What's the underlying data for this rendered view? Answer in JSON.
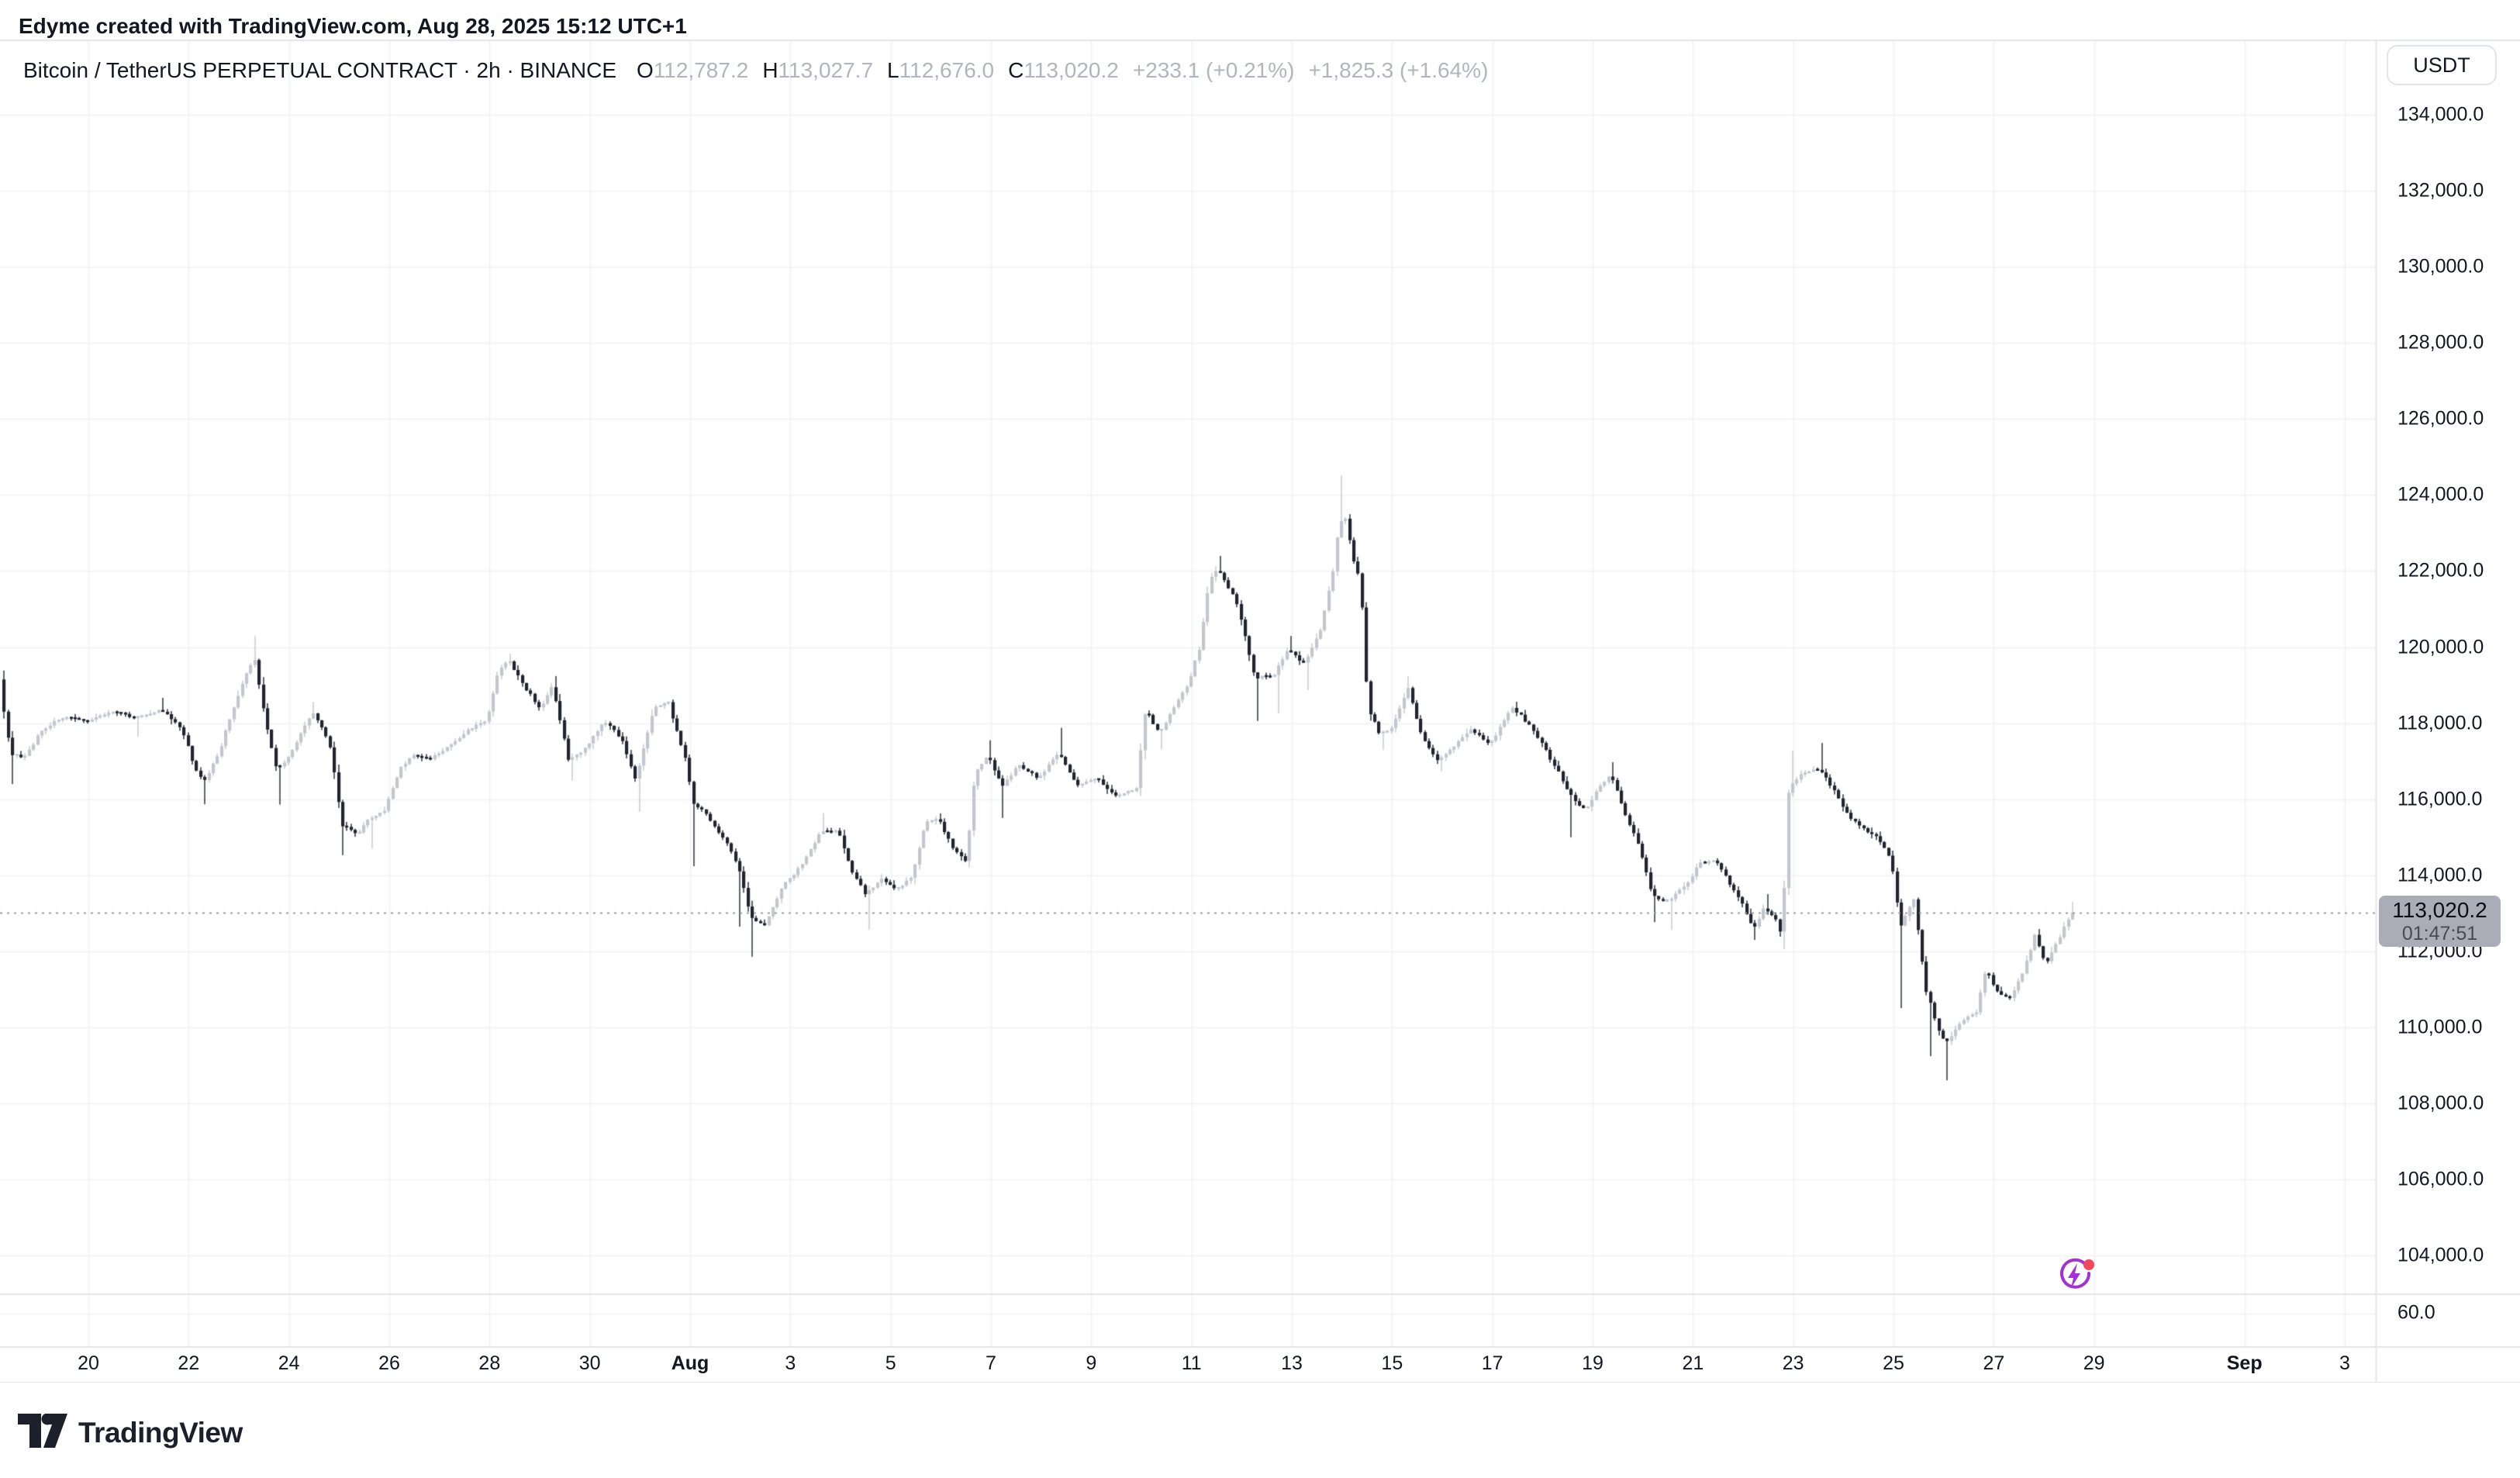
{
  "header": {
    "title": "Edyme created with TradingView.com, Aug 28, 2025 15:12 UTC+1"
  },
  "symbol": {
    "title": "Bitcoin / TetherUS PERPETUAL CONTRACT · 2h · BINANCE",
    "o_label": "O",
    "open": "112,787.2",
    "h_label": "H",
    "high": "113,027.7",
    "l_label": "L",
    "low": "112,676.0",
    "c_label": "C",
    "close": "113,020.2",
    "change": "+233.1 (+0.21%)",
    "change_extended": "+1,825.3 (+1.64%)"
  },
  "price_scale": {
    "currency": "USDT",
    "last_price": "113,020.2",
    "countdown": "01:47:51",
    "ticks": [
      {
        "label": "134,000.0",
        "value": 134000
      },
      {
        "label": "132,000.0",
        "value": 132000
      },
      {
        "label": "130,000.0",
        "value": 130000
      },
      {
        "label": "128,000.0",
        "value": 128000
      },
      {
        "label": "126,000.0",
        "value": 126000
      },
      {
        "label": "124,000.0",
        "value": 124000
      },
      {
        "label": "122,000.0",
        "value": 122000
      },
      {
        "label": "120,000.0",
        "value": 120000
      },
      {
        "label": "118,000.0",
        "value": 118000
      },
      {
        "label": "116,000.0",
        "value": 116000
      },
      {
        "label": "114,000.0",
        "value": 114000
      },
      {
        "label": "112,000.0",
        "value": 112000
      },
      {
        "label": "110,000.0",
        "value": 110000
      },
      {
        "label": "108,000.0",
        "value": 108000
      },
      {
        "label": "106,000.0",
        "value": 106000
      },
      {
        "label": "104,000.0",
        "value": 104000
      }
    ],
    "sub_pane_tick": {
      "label": "60.0"
    }
  },
  "time_scale": {
    "ticks": [
      {
        "label": "20",
        "d": 0
      },
      {
        "label": "22",
        "d": 2
      },
      {
        "label": "24",
        "d": 4
      },
      {
        "label": "26",
        "d": 6
      },
      {
        "label": "28",
        "d": 8
      },
      {
        "label": "30",
        "d": 10
      },
      {
        "label": "Aug",
        "d": 12,
        "bold": true
      },
      {
        "label": "3",
        "d": 14
      },
      {
        "label": "5",
        "d": 16
      },
      {
        "label": "7",
        "d": 18
      },
      {
        "label": "9",
        "d": 20
      },
      {
        "label": "11",
        "d": 22
      },
      {
        "label": "13",
        "d": 24
      },
      {
        "label": "15",
        "d": 26
      },
      {
        "label": "17",
        "d": 28
      },
      {
        "label": "19",
        "d": 30
      },
      {
        "label": "21",
        "d": 32
      },
      {
        "label": "23",
        "d": 34
      },
      {
        "label": "25",
        "d": 36
      },
      {
        "label": "27",
        "d": 38
      },
      {
        "label": "29",
        "d": 40
      },
      {
        "label": "Sep",
        "d": 43,
        "bold": true
      },
      {
        "label": "3",
        "d": 45
      }
    ]
  },
  "footer": {
    "logo_text": "TradingView"
  },
  "icons": {
    "boost": "lightning-bolt-in-purple-circle-with-red-dot",
    "logo_mark": "tradingview-tv-glyph"
  },
  "colors": {
    "up_candle": "#C3C6CE",
    "down_candle": "#20242F",
    "grid": "#F1F2F4",
    "separator": "#E3E5EA",
    "price_line": "#9B9EA6",
    "muted_text": "#B2B5BE",
    "text": "#131722",
    "label_bg": "#AAADB7",
    "boost_purple": "#A431D6",
    "boost_red": "#F6465D"
  },
  "chart_data": {
    "type": "candlestick",
    "title": "Bitcoin / TetherUS PERPETUAL CONTRACT",
    "interval": "2h",
    "exchange": "BINANCE",
    "quote_currency": "USDT",
    "current_bar": {
      "open": 112787.2,
      "high": 113027.7,
      "low": 112676.0,
      "close": 113020.2,
      "change_abs": 233.1,
      "change_pct": 0.21,
      "change_ext_abs": 1825.3,
      "change_ext_pct": 1.64
    },
    "last_close": 113020.2,
    "visible_date_range": [
      "Jul 18 2025",
      "Sep 4 2025"
    ],
    "data_date_range": [
      "Jul 18 2025 06:00",
      "Aug 28 2025 15:12"
    ],
    "ylim": [
      103000,
      136000
    ],
    "grid": true,
    "legend_position": "none",
    "sub_pane_value": 60.0,
    "anchors_format": "[days_since_Jul20_00utc, close_usdt, high_spike_or_null, low_spike_or_null]",
    "anchors": [
      [
        -1.72,
        119150,
        119320,
        null
      ],
      [
        -1.52,
        117250,
        null,
        116400
      ],
      [
        -1.25,
        117050,
        null,
        null
      ],
      [
        -0.9,
        117800,
        null,
        null
      ],
      [
        -0.5,
        118150,
        null,
        null
      ],
      [
        0.0,
        118050,
        null,
        null
      ],
      [
        0.5,
        118300,
        null,
        null
      ],
      [
        1.0,
        118150,
        null,
        117650
      ],
      [
        1.5,
        118350,
        118670,
        null
      ],
      [
        1.9,
        117850,
        null,
        null
      ],
      [
        2.15,
        116900,
        null,
        null
      ],
      [
        2.35,
        116450,
        null,
        115870
      ],
      [
        2.65,
        117250,
        null,
        null
      ],
      [
        2.95,
        118450,
        null,
        null
      ],
      [
        3.2,
        119300,
        null,
        null
      ],
      [
        3.35,
        119750,
        120290,
        null
      ],
      [
        3.55,
        118250,
        null,
        null
      ],
      [
        3.8,
        116750,
        null,
        115860
      ],
      [
        4.15,
        117350,
        null,
        null
      ],
      [
        4.5,
        118300,
        118560,
        null
      ],
      [
        4.85,
        117500,
        null,
        null
      ],
      [
        5.1,
        115350,
        null,
        114530
      ],
      [
        5.4,
        115050,
        null,
        null
      ],
      [
        5.65,
        115500,
        null,
        114700
      ],
      [
        5.95,
        115700,
        null,
        null
      ],
      [
        6.25,
        116800,
        null,
        null
      ],
      [
        6.5,
        117150,
        null,
        null
      ],
      [
        6.85,
        117050,
        null,
        null
      ],
      [
        7.25,
        117400,
        null,
        null
      ],
      [
        7.65,
        117850,
        null,
        null
      ],
      [
        8.0,
        118100,
        null,
        null
      ],
      [
        8.2,
        119250,
        null,
        null
      ],
      [
        8.4,
        119700,
        119830,
        null
      ],
      [
        8.75,
        118950,
        null,
        null
      ],
      [
        9.05,
        118400,
        null,
        null
      ],
      [
        9.3,
        118950,
        119240,
        null
      ],
      [
        9.62,
        117000,
        null,
        116490
      ],
      [
        9.95,
        117350,
        null,
        null
      ],
      [
        10.35,
        118050,
        null,
        null
      ],
      [
        10.7,
        117550,
        null,
        null
      ],
      [
        10.95,
        116500,
        null,
        115670
      ],
      [
        11.3,
        118350,
        null,
        null
      ],
      [
        11.6,
        118600,
        null,
        null
      ],
      [
        11.95,
        117050,
        null,
        null
      ],
      [
        12.1,
        115950,
        null,
        114240
      ],
      [
        12.4,
        115550,
        null,
        null
      ],
      [
        12.75,
        114900,
        null,
        null
      ],
      [
        13.0,
        114250,
        null,
        112650
      ],
      [
        13.25,
        112900,
        null,
        111860
      ],
      [
        13.55,
        112700,
        null,
        null
      ],
      [
        13.85,
        113650,
        null,
        null
      ],
      [
        14.25,
        114250,
        null,
        null
      ],
      [
        14.65,
        115150,
        115640,
        null
      ],
      [
        15.0,
        115150,
        null,
        null
      ],
      [
        15.3,
        114050,
        null,
        null
      ],
      [
        15.55,
        113500,
        null,
        112570
      ],
      [
        15.85,
        113900,
        null,
        null
      ],
      [
        16.15,
        113600,
        null,
        null
      ],
      [
        16.45,
        113950,
        null,
        null
      ],
      [
        16.75,
        115400,
        null,
        null
      ],
      [
        17.0,
        115500,
        115630,
        null
      ],
      [
        17.25,
        114800,
        null,
        null
      ],
      [
        17.55,
        114350,
        null,
        114210
      ],
      [
        17.72,
        116700,
        null,
        null
      ],
      [
        18.0,
        117150,
        117550,
        null
      ],
      [
        18.25,
        116350,
        null,
        115510
      ],
      [
        18.6,
        116900,
        null,
        null
      ],
      [
        19.0,
        116550,
        null,
        null
      ],
      [
        19.4,
        117250,
        117880,
        null
      ],
      [
        19.75,
        116350,
        null,
        null
      ],
      [
        20.15,
        116550,
        null,
        null
      ],
      [
        20.55,
        116050,
        null,
        null
      ],
      [
        20.95,
        116300,
        null,
        null
      ],
      [
        21.12,
        118350,
        null,
        null
      ],
      [
        21.4,
        117750,
        null,
        117310
      ],
      [
        21.7,
        118400,
        null,
        null
      ],
      [
        22.0,
        119100,
        null,
        null
      ],
      [
        22.2,
        120000,
        null,
        null
      ],
      [
        22.4,
        121700,
        null,
        null
      ],
      [
        22.55,
        122050,
        122400,
        null
      ],
      [
        22.9,
        121350,
        null,
        null
      ],
      [
        23.1,
        120400,
        null,
        null
      ],
      [
        23.3,
        119200,
        null,
        118060
      ],
      [
        23.7,
        119250,
        null,
        118260
      ],
      [
        23.95,
        119950,
        120295,
        null
      ],
      [
        24.3,
        119550,
        null,
        118870
      ],
      [
        24.6,
        120400,
        null,
        null
      ],
      [
        24.85,
        121900,
        null,
        null
      ],
      [
        25.0,
        123350,
        124520,
        null
      ],
      [
        25.12,
        123380,
        null,
        null
      ],
      [
        25.28,
        122250,
        null,
        null
      ],
      [
        25.42,
        121700,
        null,
        121255
      ],
      [
        25.56,
        118400,
        null,
        null
      ],
      [
        25.8,
        117700,
        null,
        117300
      ],
      [
        26.05,
        117900,
        null,
        null
      ],
      [
        26.35,
        118950,
        119240,
        null
      ],
      [
        26.65,
        117600,
        null,
        null
      ],
      [
        26.95,
        117050,
        null,
        116730
      ],
      [
        27.25,
        117350,
        null,
        null
      ],
      [
        27.6,
        117850,
        null,
        null
      ],
      [
        28.0,
        117450,
        null,
        null
      ],
      [
        28.45,
        118430,
        118565,
        null
      ],
      [
        28.85,
        117850,
        null,
        null
      ],
      [
        29.3,
        116850,
        null,
        null
      ],
      [
        29.6,
        116100,
        null,
        115000
      ],
      [
        29.9,
        115700,
        null,
        null
      ],
      [
        30.15,
        116250,
        null,
        null
      ],
      [
        30.4,
        116700,
        116975,
        null
      ],
      [
        30.65,
        115750,
        null,
        null
      ],
      [
        30.95,
        114800,
        null,
        null
      ],
      [
        31.25,
        113450,
        null,
        112770
      ],
      [
        31.55,
        113300,
        null,
        112565
      ],
      [
        31.9,
        113750,
        null,
        null
      ],
      [
        32.2,
        114330,
        null,
        null
      ],
      [
        32.5,
        114380,
        114450,
        null
      ],
      [
        32.8,
        113750,
        null,
        null
      ],
      [
        33.1,
        113050,
        null,
        null
      ],
      [
        33.25,
        112550,
        null,
        112300
      ],
      [
        33.45,
        113150,
        113510,
        null
      ],
      [
        33.7,
        112800,
        null,
        null
      ],
      [
        33.82,
        112350,
        null,
        112055
      ],
      [
        33.95,
        116320,
        117280,
        null
      ],
      [
        34.25,
        116700,
        null,
        null
      ],
      [
        34.55,
        116800,
        117480,
        null
      ],
      [
        34.85,
        116250,
        null,
        null
      ],
      [
        35.15,
        115550,
        null,
        null
      ],
      [
        35.4,
        115250,
        null,
        null
      ],
      [
        35.7,
        115050,
        null,
        null
      ],
      [
        36.0,
        114450,
        null,
        null
      ],
      [
        36.18,
        112650,
        null,
        110510
      ],
      [
        36.45,
        113350,
        null,
        null
      ],
      [
        36.7,
        110950,
        null,
        109245
      ],
      [
        36.92,
        110000,
        null,
        null
      ],
      [
        37.08,
        109600,
        null,
        108610
      ],
      [
        37.4,
        110150,
        null,
        null
      ],
      [
        37.7,
        110400,
        null,
        null
      ],
      [
        37.88,
        111550,
        null,
        null
      ],
      [
        38.12,
        110900,
        null,
        null
      ],
      [
        38.35,
        110750,
        null,
        null
      ],
      [
        38.62,
        111400,
        null,
        null
      ],
      [
        38.88,
        112450,
        112590,
        null
      ],
      [
        39.08,
        111650,
        null,
        null
      ],
      [
        39.35,
        112350,
        null,
        null
      ],
      [
        39.58,
        113020.2,
        113300,
        null
      ]
    ]
  }
}
